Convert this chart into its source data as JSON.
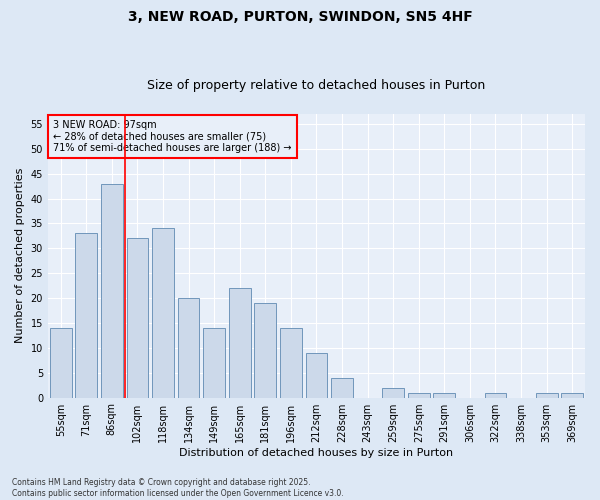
{
  "title": "3, NEW ROAD, PURTON, SWINDON, SN5 4HF",
  "subtitle": "Size of property relative to detached houses in Purton",
  "xlabel": "Distribution of detached houses by size in Purton",
  "ylabel": "Number of detached properties",
  "categories": [
    "55sqm",
    "71sqm",
    "86sqm",
    "102sqm",
    "118sqm",
    "134sqm",
    "149sqm",
    "165sqm",
    "181sqm",
    "196sqm",
    "212sqm",
    "228sqm",
    "243sqm",
    "259sqm",
    "275sqm",
    "291sqm",
    "306sqm",
    "322sqm",
    "338sqm",
    "353sqm",
    "369sqm"
  ],
  "values": [
    14,
    33,
    43,
    32,
    34,
    20,
    14,
    22,
    19,
    14,
    9,
    4,
    0,
    2,
    1,
    1,
    0,
    1,
    0,
    1,
    1
  ],
  "bar_color": "#ccd9ea",
  "bar_edge_color": "#7096bb",
  "background_color": "#dde8f5",
  "plot_bg_color": "#e8eff9",
  "grid_color": "#ffffff",
  "vline_x": 2.5,
  "vline_color": "red",
  "annotation_text": "3 NEW ROAD: 97sqm\n← 28% of detached houses are smaller (75)\n71% of semi-detached houses are larger (188) →",
  "annotation_box_color": "red",
  "ylim": [
    0,
    57
  ],
  "yticks": [
    0,
    5,
    10,
    15,
    20,
    25,
    30,
    35,
    40,
    45,
    50,
    55
  ],
  "footer": "Contains HM Land Registry data © Crown copyright and database right 2025.\nContains public sector information licensed under the Open Government Licence v3.0.",
  "title_fontsize": 10,
  "subtitle_fontsize": 9,
  "tick_fontsize": 7,
  "label_fontsize": 8,
  "annotation_fontsize": 7,
  "footer_fontsize": 5.5
}
